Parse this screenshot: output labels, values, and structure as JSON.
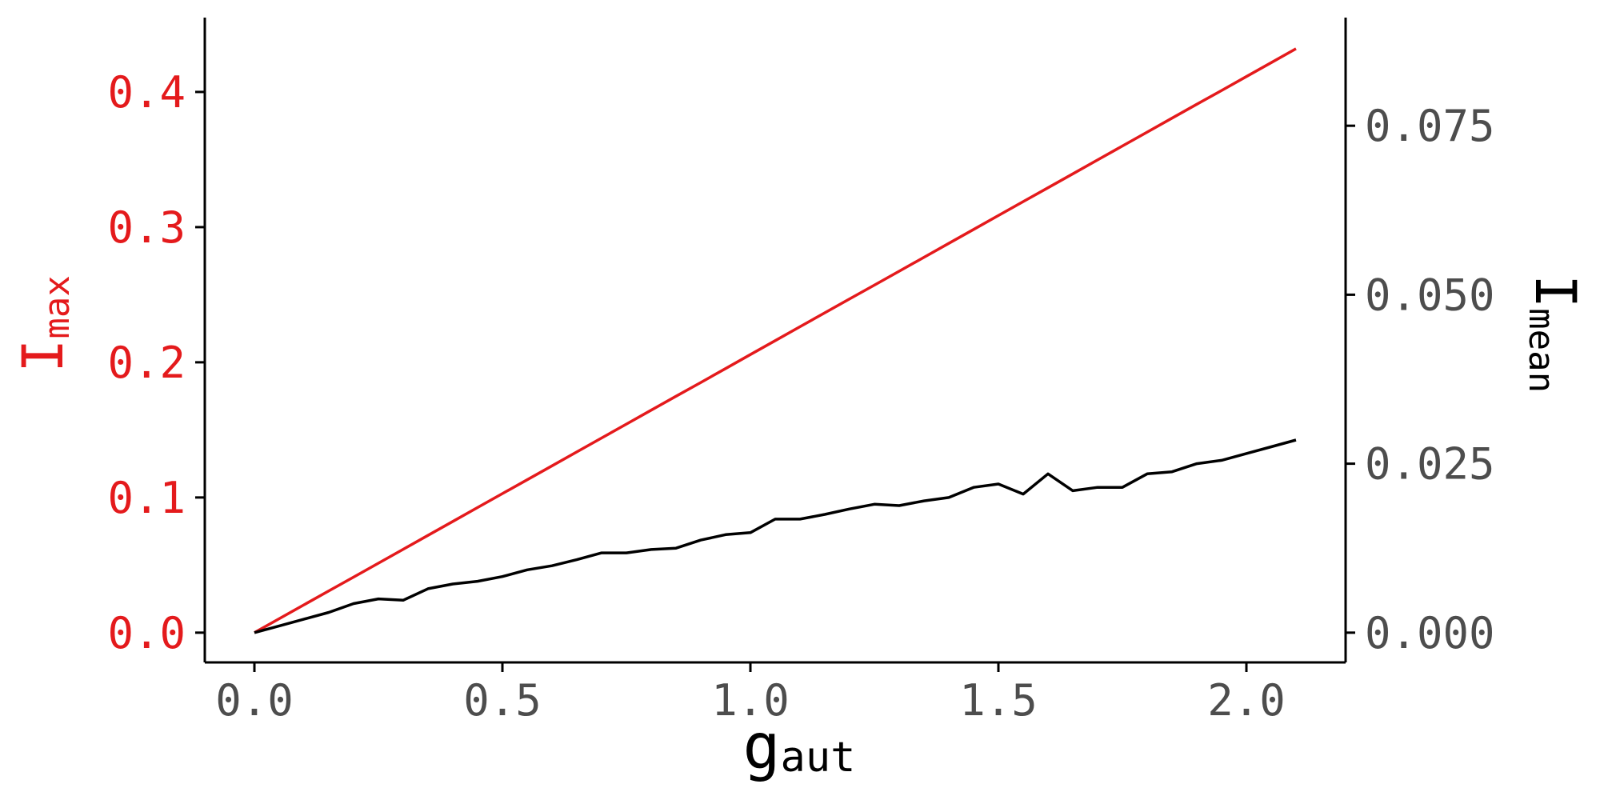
{
  "chart_data": {
    "type": "line",
    "x": [
      0.0,
      0.05,
      0.1,
      0.15,
      0.2,
      0.25,
      0.3,
      0.35,
      0.4,
      0.45,
      0.5,
      0.55,
      0.6,
      0.65,
      0.7,
      0.75,
      0.8,
      0.85,
      0.9,
      0.95,
      1.0,
      1.05,
      1.1,
      1.15,
      1.2,
      1.25,
      1.3,
      1.35,
      1.4,
      1.45,
      1.5,
      1.55,
      1.6,
      1.65,
      1.7,
      1.75,
      1.8,
      1.85,
      1.9,
      1.95,
      2.0,
      2.05,
      2.1
    ],
    "series": [
      {
        "axis": "left",
        "color": "#e41a1c",
        "values": [
          0.0,
          0.0103,
          0.0206,
          0.0309,
          0.0411,
          0.0514,
          0.0617,
          0.072,
          0.0823,
          0.0926,
          0.1029,
          0.1131,
          0.1234,
          0.1337,
          0.144,
          0.1543,
          0.1646,
          0.1749,
          0.1851,
          0.1954,
          0.2057,
          0.216,
          0.2263,
          0.2366,
          0.2469,
          0.2571,
          0.2674,
          0.2777,
          0.288,
          0.2983,
          0.3086,
          0.3189,
          0.3291,
          0.3394,
          0.3497,
          0.36,
          0.3703,
          0.3806,
          0.3909,
          0.4011,
          0.4114,
          0.4217,
          0.432
        ]
      },
      {
        "axis": "right",
        "color": "#000000",
        "values": [
          0.0,
          0.001,
          0.002,
          0.003,
          0.0043,
          0.005,
          0.0048,
          0.0065,
          0.0072,
          0.0076,
          0.0083,
          0.0093,
          0.0099,
          0.0108,
          0.0118,
          0.0118,
          0.0123,
          0.0125,
          0.0137,
          0.0145,
          0.0148,
          0.0168,
          0.0168,
          0.0175,
          0.0183,
          0.019,
          0.0188,
          0.0195,
          0.02,
          0.0215,
          0.022,
          0.0205,
          0.0235,
          0.021,
          0.0215,
          0.0215,
          0.0235,
          0.0238,
          0.025,
          0.0255,
          0.0265,
          0.0275,
          0.0285
        ]
      }
    ],
    "x_ticks": [
      "0.0",
      "0.5",
      "1.0",
      "1.5",
      "2.0"
    ],
    "x_tick_values": [
      0.0,
      0.5,
      1.0,
      1.5,
      2.0
    ],
    "y_left_ticks": [
      "0.0",
      "0.1",
      "0.2",
      "0.3",
      "0.4"
    ],
    "y_left_tick_values": [
      0.0,
      0.1,
      0.2,
      0.3,
      0.4
    ],
    "y_right_ticks": [
      "0.000",
      "0.025",
      "0.050",
      "0.075"
    ],
    "y_right_tick_values": [
      0.0,
      0.025,
      0.05,
      0.075
    ],
    "xlabel": {
      "main": "g",
      "sub": "aut"
    },
    "ylabel_left": {
      "main": "I",
      "sub": "max"
    },
    "ylabel_right": {
      "main": "I",
      "sub": "mean"
    },
    "xlim": [
      -0.1,
      2.2
    ],
    "ylim_left": [
      -0.022,
      0.455
    ],
    "ylim_right": [
      -0.0044,
      0.091
    ],
    "grid": false,
    "colors": {
      "left_axis_text": "#e41a1c",
      "right_axis_text": "#4d4d4d",
      "tick_text": "#4d4d4d",
      "axis_line": "#000000"
    }
  }
}
